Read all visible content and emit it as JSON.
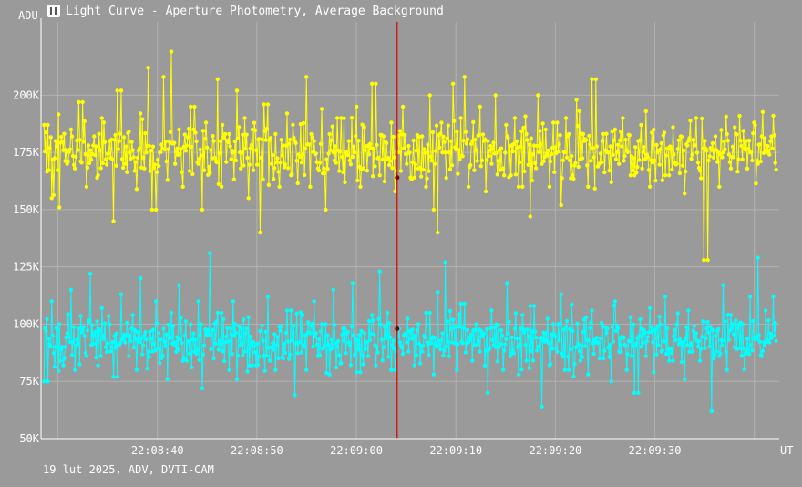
{
  "title": "Light Curve - Aperture Photometry, Average Background",
  "footer": "19 lut 2025, ADV, DVTI-CAM",
  "colors": {
    "background": "#9a9a9a",
    "grid": "#b2b2b2",
    "axis": "#ffffff",
    "series1": "#ffff00",
    "series2": "#00ffff",
    "cursor": "#dd0000",
    "marker": "#770000"
  },
  "chart_data": {
    "type": "line",
    "xlabel": "UT",
    "ylabel": "ADU",
    "x_tick_labels": [
      "22:08:40",
      "22:08:50",
      "22:09:00",
      "22:09:10",
      "22:09:20",
      "22:09:30"
    ],
    "x_tick_seconds": [
      40,
      50,
      60,
      70,
      80,
      90
    ],
    "xlim_seconds": [
      28.3,
      102.5
    ],
    "y_tick_labels": [
      "50K",
      "75K",
      "100K",
      "125K",
      "150K",
      "175K",
      "200K"
    ],
    "y_tick_values": [
      50000,
      75000,
      100000,
      125000,
      150000,
      175000,
      200000
    ],
    "ylim": [
      50000,
      232000
    ],
    "grid": true,
    "cursor_seconds": 64.1,
    "cursor_values": [
      164000,
      98000
    ],
    "series": [
      {
        "color": "#ffff00",
        "mean": 176000,
        "spread": 11000,
        "min": 128000,
        "max": 219000,
        "samples": [
          187000,
          155000,
          180000,
          151000,
          176000,
          170000,
          185000,
          168000,
          197000,
          160000,
          176000,
          182000,
          165000,
          190000,
          172000,
          180000,
          145000,
          202000,
          170000,
          184000,
          176000,
          159000,
          192000,
          168000,
          212000,
          150000,
          175000,
          208000,
          163000,
          219000,
          170000,
          185000,
          160000,
          178000,
          195000,
          170000,
          150000,
          188000,
          166000,
          180000,
          207000,
          160000,
          183000,
          175000,
          202000,
          168000,
          190000,
          155000,
          185000,
          176000,
          140000,
          196000,
          170000,
          183000,
          160000,
          178000,
          192000,
          165000,
          180000,
          174000,
          208000,
          160000,
          180000,
          168000,
          194000,
          150000,
          183000,
          175000,
          190000,
          162000,
          180000,
          173000,
          195000,
          160000,
          186000,
          178000,
          205000,
          165000,
          182000,
          172000,
          188000,
          158000,
          175000,
          195000,
          170000,
          164000,
          168000,
          182000,
          160000,
          200000,
          150000,
          140000,
          188000,
          175000,
          205000,
          184000,
          190000,
          208000,
          160000,
          180000,
          176000,
          195000,
          180000,
          170000,
          200000,
          176000,
          168000,
          182000,
          165000,
          190000,
          160000,
          183000,
          147000,
          178000,
          200000,
          170000,
          185000,
          160000,
          188000,
          152000,
          175000,
          183000,
          165000,
          198000,
          172000,
          180000,
          160000,
          207000,
          170000,
          183000,
          175000,
          162000,
          185000,
          170000,
          190000,
          176000,
          165000,
          180000,
          168000,
          193000,
          160000,
          185000,
          175000,
          179000,
          165000,
          186000,
          170000,
          182000,
          157000,
          180000,
          174000,
          190000,
          167000,
          128000,
          176000,
          182000,
          160000,
          175000,
          183000,
          168000,
          186000,
          172000,
          180000,
          175000,
          188000,
          170000,
          182000,
          176000,
          174000,
          191000
        ]
      },
      {
        "color": "#00ffff",
        "mean": 93000,
        "spread": 9000,
        "min": 62000,
        "max": 131000,
        "samples": [
          75000,
          110000,
          90000,
          100000,
          82000,
          96000,
          115000,
          80000,
          98000,
          86000,
          122000,
          95000,
          82000,
          107000,
          90000,
          100000,
          77000,
          113000,
          92000,
          86000,
          104000,
          80000,
          120000,
          95000,
          88000,
          110000,
          83000,
          98000,
          76000,
          105000,
          92000,
          117000,
          84000,
          100000,
          88000,
          110000,
          72000,
          96000,
          131000,
          85000,
          105000,
          92000,
          80000,
          110000,
          76000,
          98000,
          88000,
          103000,
          82000,
          97000,
          86000,
          112000,
          90000,
          80000,
          99000,
          85000,
          106000,
          69000,
          92000,
          104000,
          80000,
          96000,
          110000,
          86000,
          100000,
          78000,
          115000,
          90000,
          83000,
          98000,
          92000,
          118000,
          79000,
          96000,
          86000,
          104000,
          82000,
          123000,
          90000,
          105000,
          80000,
          98000,
          87000,
          92000,
          97000,
          82000,
          100000,
          88000,
          105000,
          78000,
          114000,
          93000,
          127000,
          86000,
          102000,
          80000,
          109000,
          92000,
          84000,
          100000,
          88000,
          96000,
          70000,
          106000,
          90000,
          80000,
          118000,
          87000,
          98000,
          78000,
          104000,
          84000,
          108000,
          90000,
          64000,
          96000,
          82000,
          100000,
          88000,
          113000,
          80000,
          97000,
          90000,
          84000,
          102000,
          78000,
          106000,
          92000,
          85000,
          98000,
          75000,
          110000,
          88000,
          94000,
          80000,
          103000,
          70000,
          98000,
          86000,
          107000,
          79000,
          99000,
          88000,
          112000,
          84000,
          100000,
          92000,
          76000,
          106000,
          88000,
          96000,
          84000,
          101000,
          62000,
          95000,
          86000,
          117000,
          80000,
          104000,
          90000,
          100000,
          88000,
          112000,
          94000,
          129000,
          86000,
          106000,
          92000,
          112000
        ]
      }
    ]
  }
}
